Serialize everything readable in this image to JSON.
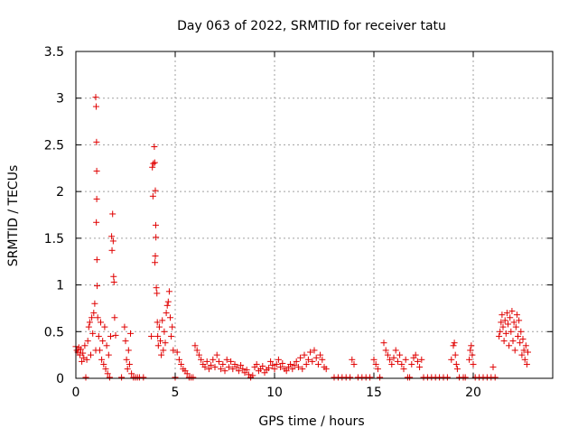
{
  "chart_data": {
    "type": "scatter",
    "title": "Day 063 of 2022, SRMTID for receiver tatu",
    "xlabel": "GPS time / hours",
    "ylabel": "SRMTID / TECUs",
    "xlim": [
      0,
      24
    ],
    "ylim": [
      0,
      3.5
    ],
    "x_ticks": [
      0,
      5,
      10,
      15,
      20
    ],
    "x_tick_labels": [
      "0",
      "5",
      "10",
      "15",
      "20"
    ],
    "y_ticks": [
      0,
      0.5,
      1,
      1.5,
      2,
      2.5,
      3,
      3.5
    ],
    "y_tick_labels": [
      "0",
      "0.5",
      "1",
      "1.5",
      "2",
      "2.5",
      "3",
      "3.5"
    ],
    "grid": true,
    "marker": "+",
    "series": [
      {
        "name": "SRMTID",
        "color": "#e00000",
        "points": [
          [
            0.0,
            0.34
          ],
          [
            0.05,
            0.3
          ],
          [
            0.1,
            0.28
          ],
          [
            0.15,
            0.33
          ],
          [
            0.2,
            0.25
          ],
          [
            0.25,
            0.31
          ],
          [
            0.3,
            0.18
          ],
          [
            0.35,
            0.27
          ],
          [
            0.4,
            0.22
          ],
          [
            0.45,
            0.35
          ],
          [
            0.5,
            0.01
          ],
          [
            0.55,
            0.2
          ],
          [
            0.6,
            0.4
          ],
          [
            0.65,
            0.55
          ],
          [
            0.7,
            0.6
          ],
          [
            0.75,
            0.25
          ],
          [
            0.8,
            0.65
          ],
          [
            0.85,
            0.48
          ],
          [
            0.9,
            0.7
          ],
          [
            0.95,
            0.8
          ],
          [
            1.0,
            0.3
          ],
          [
            1.0,
            3.01
          ],
          [
            1.02,
            2.91
          ],
          [
            1.04,
            2.53
          ],
          [
            1.05,
            2.22
          ],
          [
            1.05,
            1.92
          ],
          [
            1.03,
            1.67
          ],
          [
            1.06,
            1.27
          ],
          [
            1.07,
            0.99
          ],
          [
            1.1,
            0.65
          ],
          [
            1.15,
            0.45
          ],
          [
            1.2,
            0.3
          ],
          [
            1.25,
            0.6
          ],
          [
            1.3,
            0.2
          ],
          [
            1.35,
            0.4
          ],
          [
            1.4,
            0.15
          ],
          [
            1.45,
            0.55
          ],
          [
            1.5,
            0.1
          ],
          [
            1.55,
            0.35
          ],
          [
            1.6,
            0.05
          ],
          [
            1.65,
            0.25
          ],
          [
            1.7,
            0.01
          ],
          [
            1.75,
            0.45
          ],
          [
            1.8,
            1.52
          ],
          [
            1.82,
            1.37
          ],
          [
            1.85,
            1.76
          ],
          [
            1.88,
            1.47
          ],
          [
            1.9,
            1.09
          ],
          [
            1.92,
            1.03
          ],
          [
            1.95,
            0.65
          ],
          [
            2.0,
            0.46
          ],
          [
            2.3,
            0.01
          ],
          [
            2.45,
            0.55
          ],
          [
            2.5,
            0.4
          ],
          [
            2.55,
            0.2
          ],
          [
            2.6,
            0.1
          ],
          [
            2.65,
            0.3
          ],
          [
            2.7,
            0.15
          ],
          [
            2.75,
            0.48
          ],
          [
            2.8,
            0.05
          ],
          [
            2.9,
            0.01
          ],
          [
            3.0,
            0.01
          ],
          [
            3.1,
            0.01
          ],
          [
            3.2,
            0.01
          ],
          [
            3.4,
            0.01
          ],
          [
            3.8,
            0.45
          ],
          [
            3.85,
            2.26
          ],
          [
            3.88,
            1.95
          ],
          [
            3.9,
            2.3
          ],
          [
            3.95,
            2.48
          ],
          [
            3.97,
            2.31
          ],
          [
            4.0,
            2.01
          ],
          [
            4.02,
            1.64
          ],
          [
            4.03,
            1.51
          ],
          [
            4.0,
            1.31
          ],
          [
            3.98,
            1.24
          ],
          [
            4.05,
            0.97
          ],
          [
            4.08,
            0.91
          ],
          [
            4.1,
            0.6
          ],
          [
            4.12,
            0.45
          ],
          [
            4.15,
            0.35
          ],
          [
            4.2,
            0.55
          ],
          [
            4.25,
            0.4
          ],
          [
            4.3,
            0.25
          ],
          [
            4.35,
            0.62
          ],
          [
            4.4,
            0.3
          ],
          [
            4.45,
            0.5
          ],
          [
            4.5,
            0.38
          ],
          [
            4.55,
            0.7
          ],
          [
            4.6,
            0.78
          ],
          [
            4.65,
            0.82
          ],
          [
            4.7,
            0.93
          ],
          [
            4.75,
            0.65
          ],
          [
            4.8,
            0.45
          ],
          [
            4.85,
            0.55
          ],
          [
            4.9,
            0.3
          ],
          [
            5.0,
            0.01
          ],
          [
            5.1,
            0.28
          ],
          [
            5.2,
            0.2
          ],
          [
            5.3,
            0.15
          ],
          [
            5.4,
            0.1
          ],
          [
            5.5,
            0.08
          ],
          [
            5.6,
            0.05
          ],
          [
            5.7,
            0.01
          ],
          [
            5.8,
            0.01
          ],
          [
            5.9,
            0.01
          ],
          [
            6.0,
            0.35
          ],
          [
            6.1,
            0.3
          ],
          [
            6.2,
            0.25
          ],
          [
            6.3,
            0.2
          ],
          [
            6.4,
            0.15
          ],
          [
            6.5,
            0.12
          ],
          [
            6.6,
            0.18
          ],
          [
            6.7,
            0.1
          ],
          [
            6.8,
            0.14
          ],
          [
            6.9,
            0.2
          ],
          [
            7.0,
            0.12
          ],
          [
            7.1,
            0.25
          ],
          [
            7.2,
            0.18
          ],
          [
            7.3,
            0.1
          ],
          [
            7.4,
            0.15
          ],
          [
            7.5,
            0.08
          ],
          [
            7.6,
            0.2
          ],
          [
            7.7,
            0.12
          ],
          [
            7.8,
            0.18
          ],
          [
            7.9,
            0.1
          ],
          [
            8.0,
            0.15
          ],
          [
            8.1,
            0.12
          ],
          [
            8.2,
            0.08
          ],
          [
            8.3,
            0.14
          ],
          [
            8.4,
            0.1
          ],
          [
            8.5,
            0.06
          ],
          [
            8.6,
            0.09
          ],
          [
            8.7,
            0.04
          ],
          [
            8.8,
            0.01
          ],
          [
            8.9,
            0.03
          ],
          [
            9.0,
            0.12
          ],
          [
            9.1,
            0.15
          ],
          [
            9.2,
            0.08
          ],
          [
            9.3,
            0.1
          ],
          [
            9.4,
            0.13
          ],
          [
            9.5,
            0.06
          ],
          [
            9.6,
            0.09
          ],
          [
            9.7,
            0.11
          ],
          [
            9.8,
            0.18
          ],
          [
            9.9,
            0.14
          ],
          [
            10.0,
            0.1
          ],
          [
            10.1,
            0.15
          ],
          [
            10.2,
            0.2
          ],
          [
            10.3,
            0.12
          ],
          [
            10.4,
            0.16
          ],
          [
            10.5,
            0.1
          ],
          [
            10.6,
            0.08
          ],
          [
            10.7,
            0.12
          ],
          [
            10.8,
            0.15
          ],
          [
            10.9,
            0.1
          ],
          [
            11.0,
            0.14
          ],
          [
            11.1,
            0.18
          ],
          [
            11.2,
            0.12
          ],
          [
            11.3,
            0.22
          ],
          [
            11.4,
            0.1
          ],
          [
            11.5,
            0.25
          ],
          [
            11.6,
            0.15
          ],
          [
            11.7,
            0.2
          ],
          [
            11.8,
            0.28
          ],
          [
            11.9,
            0.18
          ],
          [
            12.0,
            0.3
          ],
          [
            12.1,
            0.22
          ],
          [
            12.2,
            0.15
          ],
          [
            12.3,
            0.25
          ],
          [
            12.4,
            0.2
          ],
          [
            12.5,
            0.12
          ],
          [
            12.6,
            0.1
          ],
          [
            13.0,
            0.01
          ],
          [
            13.2,
            0.01
          ],
          [
            13.4,
            0.01
          ],
          [
            13.6,
            0.01
          ],
          [
            13.8,
            0.01
          ],
          [
            13.9,
            0.2
          ],
          [
            14.0,
            0.15
          ],
          [
            14.2,
            0.01
          ],
          [
            14.4,
            0.01
          ],
          [
            14.6,
            0.01
          ],
          [
            14.8,
            0.01
          ],
          [
            15.0,
            0.2
          ],
          [
            15.1,
            0.15
          ],
          [
            15.2,
            0.1
          ],
          [
            15.3,
            0.01
          ],
          [
            15.5,
            0.38
          ],
          [
            15.6,
            0.3
          ],
          [
            15.7,
            0.25
          ],
          [
            15.8,
            0.2
          ],
          [
            15.9,
            0.15
          ],
          [
            16.0,
            0.22
          ],
          [
            16.1,
            0.3
          ],
          [
            16.2,
            0.18
          ],
          [
            16.3,
            0.25
          ],
          [
            16.4,
            0.15
          ],
          [
            16.5,
            0.1
          ],
          [
            16.6,
            0.2
          ],
          [
            16.7,
            0.01
          ],
          [
            16.8,
            0.01
          ],
          [
            16.9,
            0.15
          ],
          [
            17.0,
            0.22
          ],
          [
            17.1,
            0.25
          ],
          [
            17.2,
            0.18
          ],
          [
            17.3,
            0.12
          ],
          [
            17.4,
            0.2
          ],
          [
            17.5,
            0.01
          ],
          [
            17.7,
            0.01
          ],
          [
            17.9,
            0.01
          ],
          [
            18.1,
            0.01
          ],
          [
            18.3,
            0.01
          ],
          [
            18.5,
            0.01
          ],
          [
            18.7,
            0.01
          ],
          [
            18.9,
            0.2
          ],
          [
            19.0,
            0.35
          ],
          [
            19.05,
            0.38
          ],
          [
            19.1,
            0.25
          ],
          [
            19.15,
            0.15
          ],
          [
            19.2,
            0.1
          ],
          [
            19.3,
            0.01
          ],
          [
            19.5,
            0.01
          ],
          [
            19.6,
            0.01
          ],
          [
            19.8,
            0.2
          ],
          [
            19.85,
            0.3
          ],
          [
            19.9,
            0.35
          ],
          [
            19.95,
            0.25
          ],
          [
            20.0,
            0.15
          ],
          [
            20.1,
            0.01
          ],
          [
            20.3,
            0.01
          ],
          [
            20.5,
            0.01
          ],
          [
            20.7,
            0.01
          ],
          [
            20.9,
            0.01
          ],
          [
            21.0,
            0.12
          ],
          [
            21.1,
            0.01
          ],
          [
            21.3,
            0.45
          ],
          [
            21.35,
            0.5
          ],
          [
            21.4,
            0.6
          ],
          [
            21.45,
            0.68
          ],
          [
            21.5,
            0.55
          ],
          [
            21.55,
            0.4
          ],
          [
            21.6,
            0.62
          ],
          [
            21.65,
            0.48
          ],
          [
            21.7,
            0.7
          ],
          [
            21.75,
            0.58
          ],
          [
            21.8,
            0.35
          ],
          [
            21.85,
            0.65
          ],
          [
            21.9,
            0.5
          ],
          [
            21.95,
            0.72
          ],
          [
            22.0,
            0.4
          ],
          [
            22.05,
            0.6
          ],
          [
            22.1,
            0.3
          ],
          [
            22.15,
            0.55
          ],
          [
            22.2,
            0.68
          ],
          [
            22.25,
            0.45
          ],
          [
            22.3,
            0.62
          ],
          [
            22.35,
            0.38
          ],
          [
            22.4,
            0.5
          ],
          [
            22.45,
            0.25
          ],
          [
            22.5,
            0.42
          ],
          [
            22.55,
            0.3
          ],
          [
            22.6,
            0.2
          ],
          [
            22.65,
            0.35
          ],
          [
            22.7,
            0.15
          ],
          [
            22.75,
            0.28
          ]
        ]
      }
    ]
  }
}
